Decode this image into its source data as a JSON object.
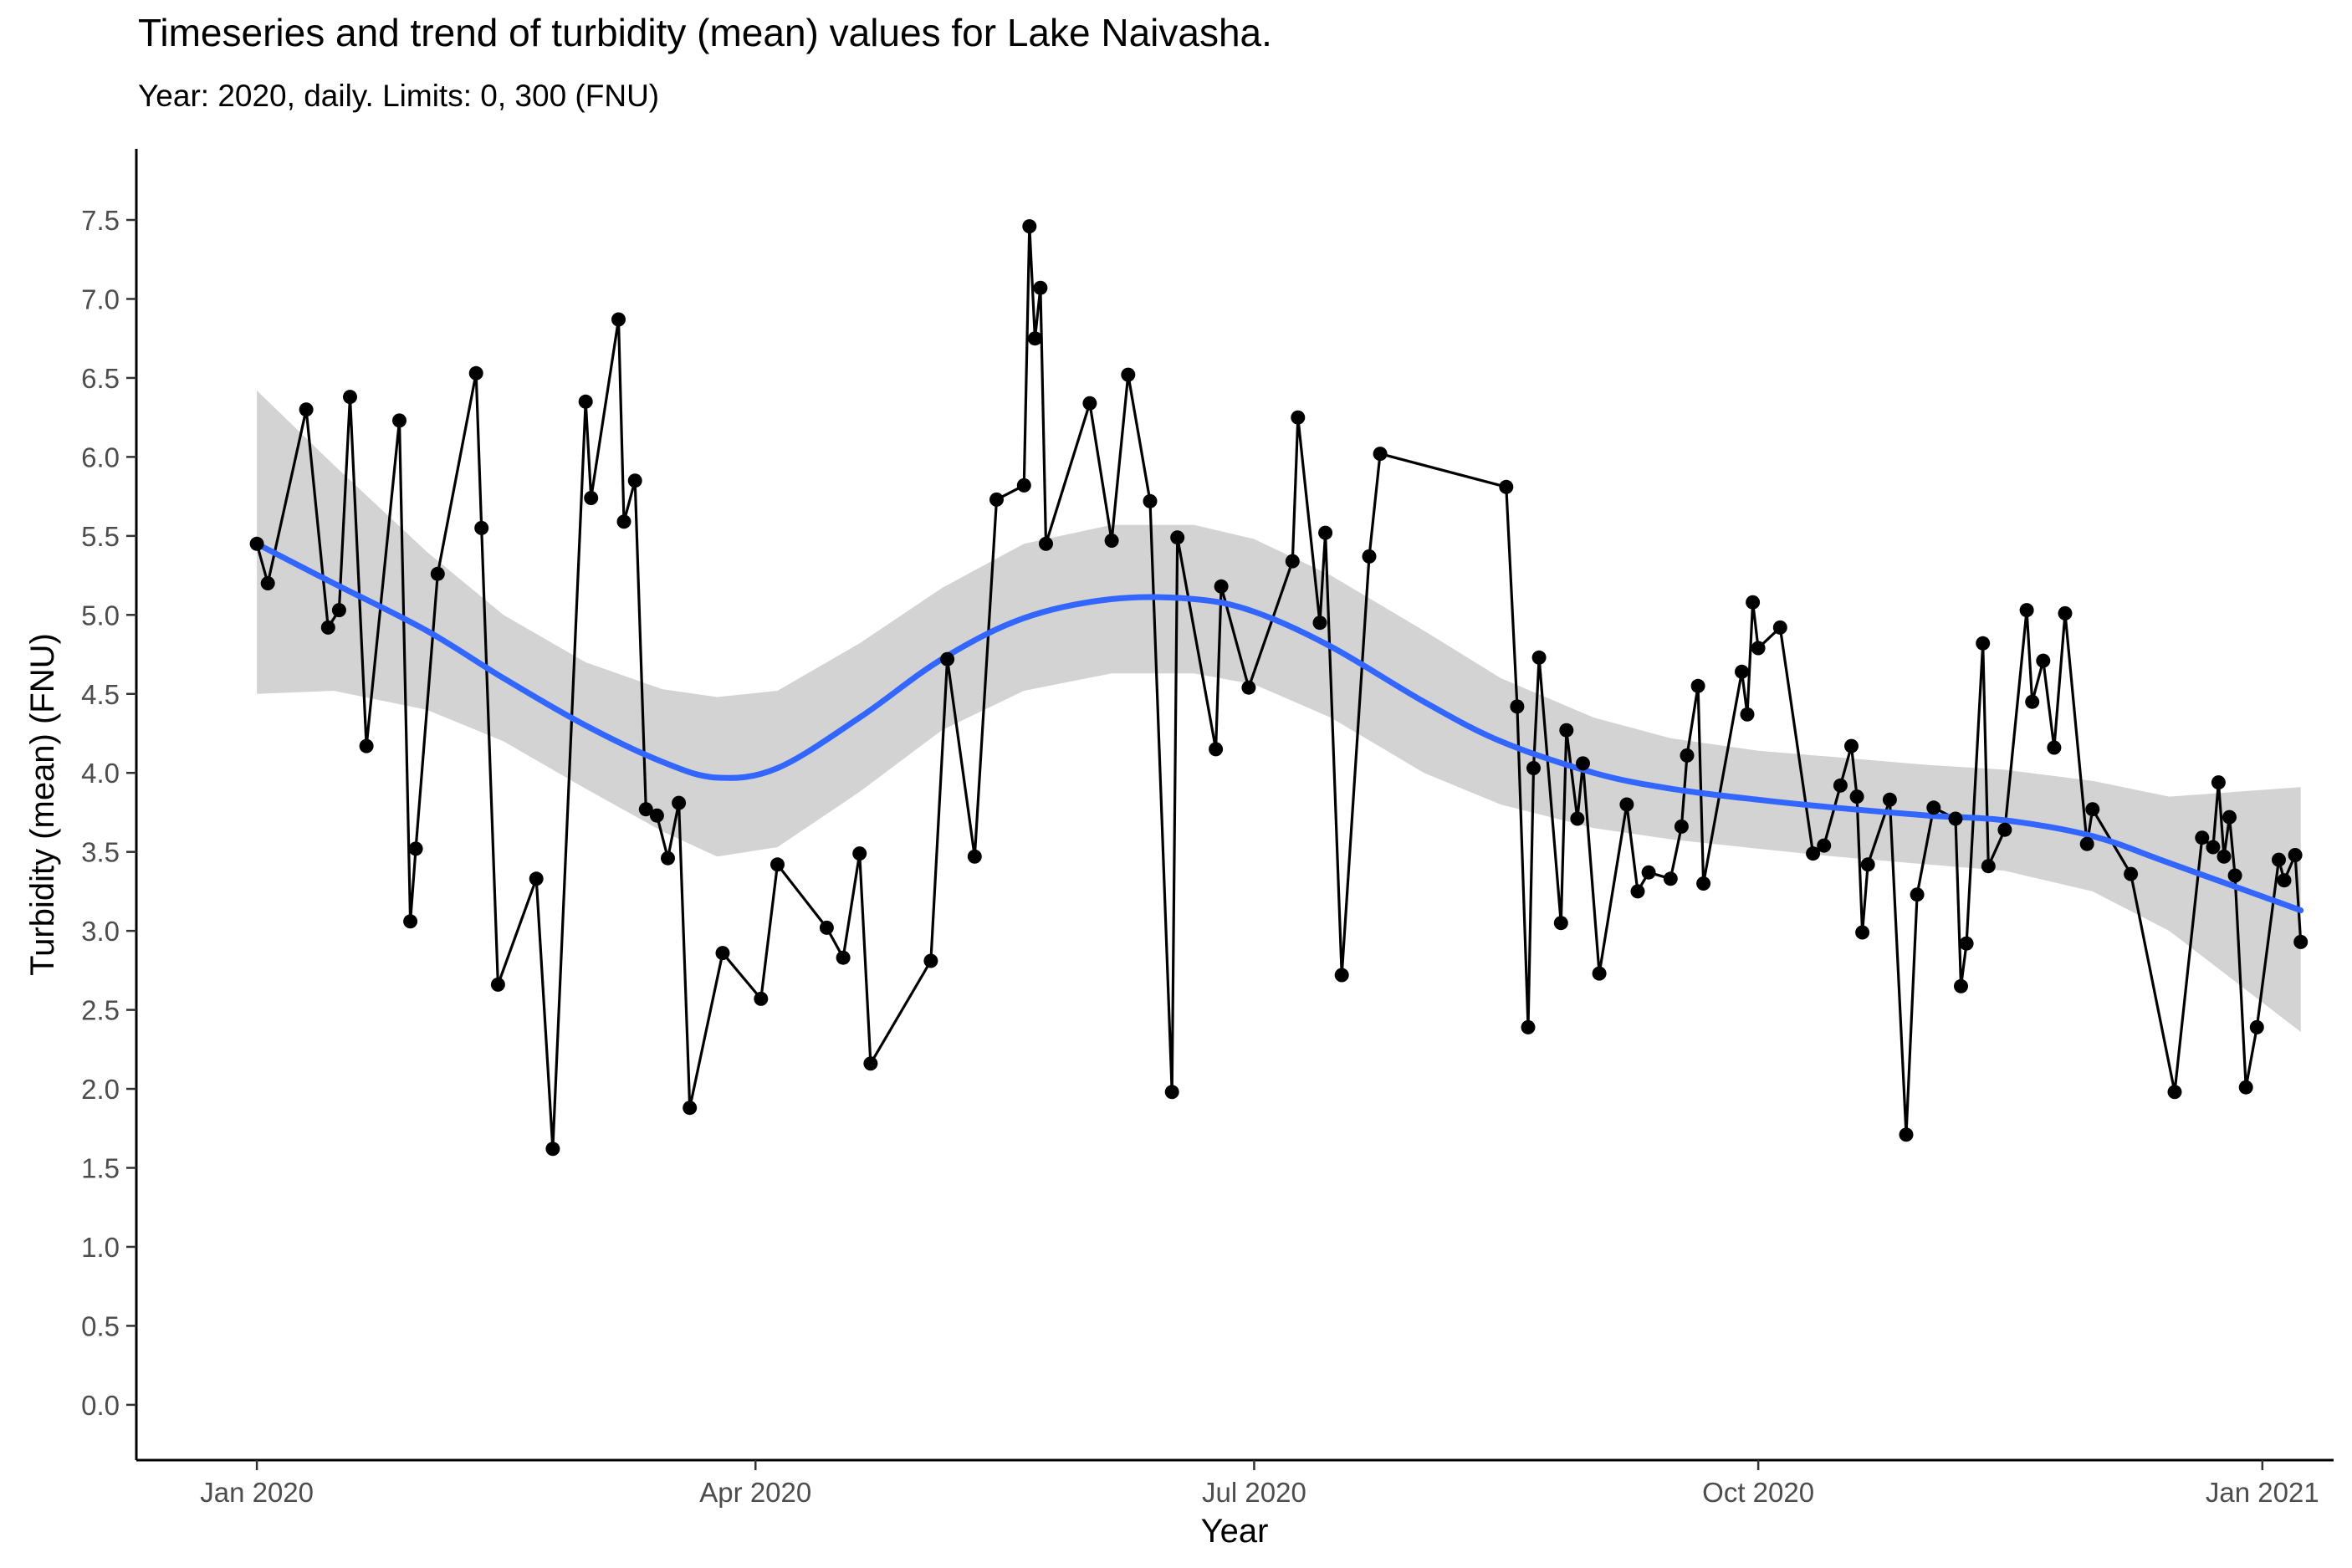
{
  "title": "Timeseries and trend of turbidity (mean) values for Lake Naivasha.",
  "subtitle": "Year: 2020, daily. Limits: 0, 300 (FNU)",
  "colors": {
    "trend": "#3366FF",
    "ribbon": "#D3D3D3",
    "series": "#000000"
  },
  "chart_data": {
    "type": "line",
    "xlabel": "Year",
    "ylabel": "Turbidity (mean) (FNU)",
    "xlim": [
      "2019-12-10",
      "2021-01-14"
    ],
    "ylim": [
      -0.35,
      7.95
    ],
    "x_ticks": [
      {
        "date": "2020-01-01",
        "label": "Jan 2020"
      },
      {
        "date": "2020-04-01",
        "label": "Apr 2020"
      },
      {
        "date": "2020-07-01",
        "label": "Jul 2020"
      },
      {
        "date": "2020-10-01",
        "label": "Oct 2020"
      },
      {
        "date": "2021-01-01",
        "label": "Jan 2021"
      }
    ],
    "y_ticks": [
      0.0,
      0.5,
      1.0,
      1.5,
      2.0,
      2.5,
      3.0,
      3.5,
      4.0,
      4.5,
      5.0,
      5.5,
      6.0,
      6.5,
      7.0,
      7.5
    ],
    "y_tick_labels": [
      "0.0",
      "0.5",
      "1.0",
      "1.5",
      "2.0",
      "2.5",
      "3.0",
      "3.5",
      "4.0",
      "4.5",
      "5.0",
      "5.5",
      "6.0",
      "6.5",
      "7.0",
      "7.5"
    ],
    "grid": false,
    "series": [
      {
        "kind": "points-line",
        "points": [
          [
            "2020-01-01",
            5.45
          ],
          [
            "2020-01-03",
            5.2
          ],
          [
            "2020-01-10",
            6.3
          ],
          [
            "2020-01-14",
            4.92
          ],
          [
            "2020-01-16",
            5.03
          ],
          [
            "2020-01-18",
            6.38
          ],
          [
            "2020-01-21",
            4.17
          ],
          [
            "2020-01-27",
            6.23
          ],
          [
            "2020-01-29",
            3.06
          ],
          [
            "2020-01-30",
            3.52
          ],
          [
            "2020-02-03",
            5.26
          ],
          [
            "2020-02-10",
            6.53
          ],
          [
            "2020-02-11",
            5.55
          ],
          [
            "2020-02-14",
            2.66
          ],
          [
            "2020-02-21",
            3.33
          ],
          [
            "2020-02-24",
            1.62
          ],
          [
            "2020-03-01",
            6.35
          ],
          [
            "2020-03-02",
            5.74
          ],
          [
            "2020-03-07",
            6.87
          ],
          [
            "2020-03-08",
            5.59
          ],
          [
            "2020-03-10",
            5.85
          ],
          [
            "2020-03-12",
            3.77
          ],
          [
            "2020-03-14",
            3.73
          ],
          [
            "2020-03-16",
            3.46
          ],
          [
            "2020-03-18",
            3.81
          ],
          [
            "2020-03-20",
            1.88
          ],
          [
            "2020-03-26",
            2.86
          ],
          [
            "2020-04-02",
            2.57
          ],
          [
            "2020-04-05",
            3.42
          ],
          [
            "2020-04-14",
            3.02
          ],
          [
            "2020-04-17",
            2.83
          ],
          [
            "2020-04-20",
            3.49
          ],
          [
            "2020-04-22",
            2.16
          ],
          [
            "2020-05-03",
            2.81
          ],
          [
            "2020-05-06",
            4.72
          ],
          [
            "2020-05-11",
            3.47
          ],
          [
            "2020-05-15",
            5.73
          ],
          [
            "2020-05-20",
            5.82
          ],
          [
            "2020-05-21",
            7.46
          ],
          [
            "2020-05-22",
            6.75
          ],
          [
            "2020-05-23",
            7.07
          ],
          [
            "2020-05-24",
            5.45
          ],
          [
            "2020-06-01",
            6.34
          ],
          [
            "2020-06-05",
            5.47
          ],
          [
            "2020-06-08",
            6.52
          ],
          [
            "2020-06-12",
            5.72
          ],
          [
            "2020-06-16",
            1.98
          ],
          [
            "2020-06-17",
            5.49
          ],
          [
            "2020-06-24",
            4.15
          ],
          [
            "2020-06-25",
            5.18
          ],
          [
            "2020-06-30",
            4.54
          ],
          [
            "2020-07-08",
            5.34
          ],
          [
            "2020-07-09",
            6.25
          ],
          [
            "2020-07-13",
            4.95
          ],
          [
            "2020-07-14",
            5.52
          ],
          [
            "2020-07-17",
            2.72
          ],
          [
            "2020-07-22",
            5.37
          ],
          [
            "2020-07-24",
            6.02
          ],
          [
            "2020-08-16",
            5.81
          ],
          [
            "2020-08-18",
            4.42
          ],
          [
            "2020-08-20",
            2.39
          ],
          [
            "2020-08-21",
            4.03
          ],
          [
            "2020-08-22",
            4.73
          ],
          [
            "2020-08-26",
            3.05
          ],
          [
            "2020-08-27",
            4.27
          ],
          [
            "2020-08-29",
            3.71
          ],
          [
            "2020-08-30",
            4.06
          ],
          [
            "2020-09-02",
            2.73
          ],
          [
            "2020-09-07",
            3.8
          ],
          [
            "2020-09-09",
            3.25
          ],
          [
            "2020-09-11",
            3.37
          ],
          [
            "2020-09-15",
            3.33
          ],
          [
            "2020-09-17",
            3.66
          ],
          [
            "2020-09-18",
            4.11
          ],
          [
            "2020-09-20",
            4.55
          ],
          [
            "2020-09-21",
            3.3
          ],
          [
            "2020-09-28",
            4.64
          ],
          [
            "2020-09-29",
            4.37
          ],
          [
            "2020-09-30",
            5.08
          ],
          [
            "2020-10-01",
            4.79
          ],
          [
            "2020-10-05",
            4.92
          ],
          [
            "2020-10-11",
            3.49
          ],
          [
            "2020-10-13",
            3.54
          ],
          [
            "2020-10-16",
            3.92
          ],
          [
            "2020-10-18",
            4.17
          ],
          [
            "2020-10-19",
            3.85
          ],
          [
            "2020-10-20",
            2.99
          ],
          [
            "2020-10-21",
            3.42
          ],
          [
            "2020-10-25",
            3.83
          ],
          [
            "2020-10-28",
            1.71
          ],
          [
            "2020-10-30",
            3.23
          ],
          [
            "2020-11-02",
            3.78
          ],
          [
            "2020-11-06",
            3.71
          ],
          [
            "2020-11-07",
            2.65
          ],
          [
            "2020-11-08",
            2.92
          ],
          [
            "2020-11-11",
            4.82
          ],
          [
            "2020-11-12",
            3.41
          ],
          [
            "2020-11-15",
            3.64
          ],
          [
            "2020-11-19",
            5.03
          ],
          [
            "2020-11-20",
            4.45
          ],
          [
            "2020-11-22",
            4.71
          ],
          [
            "2020-11-24",
            4.16
          ],
          [
            "2020-11-26",
            5.01
          ],
          [
            "2020-11-30",
            3.55
          ],
          [
            "2020-12-01",
            3.77
          ],
          [
            "2020-12-08",
            3.36
          ],
          [
            "2020-12-16",
            1.98
          ],
          [
            "2020-12-21",
            3.59
          ],
          [
            "2020-12-23",
            3.53
          ],
          [
            "2020-12-24",
            3.94
          ],
          [
            "2020-12-25",
            3.47
          ],
          [
            "2020-12-26",
            3.72
          ],
          [
            "2020-12-27",
            3.35
          ],
          [
            "2020-12-29",
            2.01
          ],
          [
            "2020-12-31",
            2.39
          ],
          [
            "2021-01-04",
            3.45
          ],
          [
            "2021-01-05",
            3.32
          ],
          [
            "2021-01-07",
            3.48
          ],
          [
            "2021-01-08",
            2.93
          ]
        ]
      },
      {
        "kind": "smooth-trend",
        "points": [
          [
            "2020-01-01",
            5.45
          ],
          [
            "2020-01-15",
            5.2
          ],
          [
            "2020-02-01",
            4.9
          ],
          [
            "2020-02-15",
            4.6
          ],
          [
            "2020-03-01",
            4.3
          ],
          [
            "2020-03-15",
            4.07
          ],
          [
            "2020-03-25",
            3.97
          ],
          [
            "2020-04-05",
            4.03
          ],
          [
            "2020-04-20",
            4.35
          ],
          [
            "2020-05-05",
            4.72
          ],
          [
            "2020-05-20",
            4.98
          ],
          [
            "2020-06-05",
            5.1
          ],
          [
            "2020-06-20",
            5.1
          ],
          [
            "2020-07-01",
            5.02
          ],
          [
            "2020-07-15",
            4.8
          ],
          [
            "2020-08-01",
            4.45
          ],
          [
            "2020-08-15",
            4.2
          ],
          [
            "2020-09-01",
            4.0
          ],
          [
            "2020-09-15",
            3.9
          ],
          [
            "2020-10-01",
            3.83
          ],
          [
            "2020-10-15",
            3.78
          ],
          [
            "2020-11-01",
            3.73
          ],
          [
            "2020-11-15",
            3.7
          ],
          [
            "2020-12-01",
            3.6
          ],
          [
            "2020-12-15",
            3.43
          ],
          [
            "2021-01-08",
            3.13
          ]
        ],
        "ci_upper": [
          [
            "2020-01-01",
            6.42
          ],
          [
            "2020-01-15",
            5.95
          ],
          [
            "2020-02-01",
            5.4
          ],
          [
            "2020-02-15",
            5.0
          ],
          [
            "2020-03-01",
            4.7
          ],
          [
            "2020-03-15",
            4.53
          ],
          [
            "2020-03-25",
            4.48
          ],
          [
            "2020-04-05",
            4.52
          ],
          [
            "2020-04-20",
            4.82
          ],
          [
            "2020-05-05",
            5.17
          ],
          [
            "2020-05-20",
            5.45
          ],
          [
            "2020-06-05",
            5.57
          ],
          [
            "2020-06-20",
            5.57
          ],
          [
            "2020-07-01",
            5.48
          ],
          [
            "2020-07-15",
            5.25
          ],
          [
            "2020-08-01",
            4.9
          ],
          [
            "2020-08-15",
            4.6
          ],
          [
            "2020-09-01",
            4.35
          ],
          [
            "2020-09-15",
            4.22
          ],
          [
            "2020-10-01",
            4.14
          ],
          [
            "2020-10-15",
            4.1
          ],
          [
            "2020-11-01",
            4.05
          ],
          [
            "2020-11-15",
            4.02
          ],
          [
            "2020-12-01",
            3.95
          ],
          [
            "2020-12-15",
            3.85
          ],
          [
            "2021-01-08",
            3.91
          ]
        ],
        "ci_lower": [
          [
            "2020-01-01",
            4.5
          ],
          [
            "2020-01-15",
            4.52
          ],
          [
            "2020-02-01",
            4.4
          ],
          [
            "2020-02-15",
            4.2
          ],
          [
            "2020-03-01",
            3.9
          ],
          [
            "2020-03-15",
            3.63
          ],
          [
            "2020-03-25",
            3.47
          ],
          [
            "2020-04-05",
            3.53
          ],
          [
            "2020-04-20",
            3.88
          ],
          [
            "2020-05-05",
            4.27
          ],
          [
            "2020-05-20",
            4.52
          ],
          [
            "2020-06-05",
            4.63
          ],
          [
            "2020-06-20",
            4.63
          ],
          [
            "2020-07-01",
            4.56
          ],
          [
            "2020-07-15",
            4.35
          ],
          [
            "2020-08-01",
            4.0
          ],
          [
            "2020-08-15",
            3.8
          ],
          [
            "2020-09-01",
            3.65
          ],
          [
            "2020-09-15",
            3.58
          ],
          [
            "2020-10-01",
            3.52
          ],
          [
            "2020-10-15",
            3.47
          ],
          [
            "2020-11-01",
            3.42
          ],
          [
            "2020-11-15",
            3.38
          ],
          [
            "2020-12-01",
            3.25
          ],
          [
            "2020-12-15",
            3.0
          ],
          [
            "2021-01-08",
            2.36
          ]
        ]
      }
    ]
  }
}
